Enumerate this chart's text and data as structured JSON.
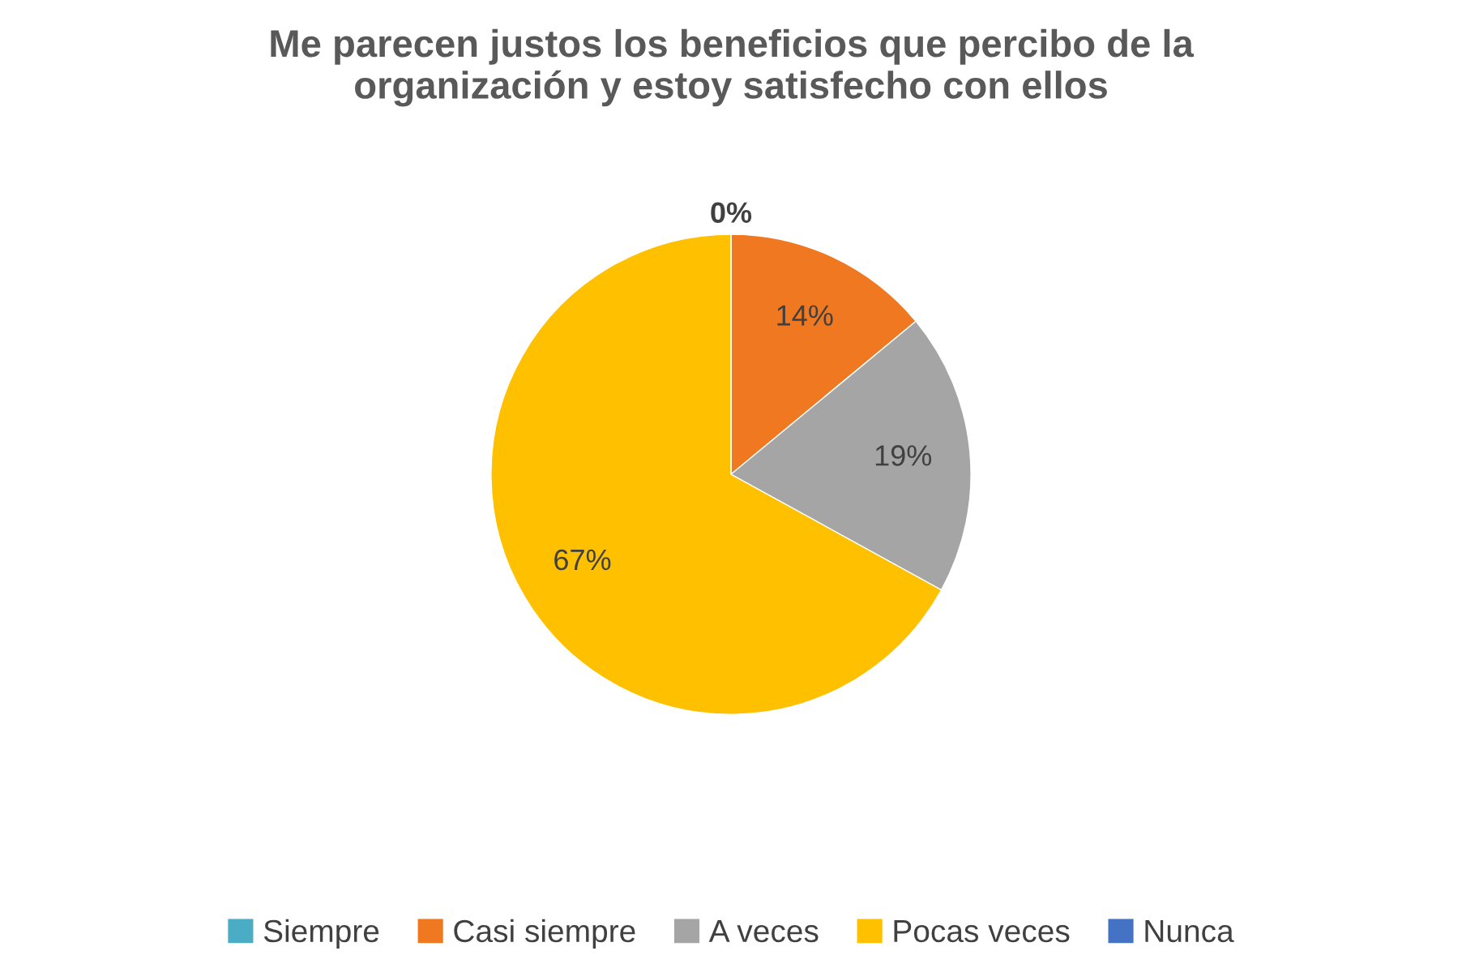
{
  "chart_data": {
    "type": "pie",
    "title": "Me parecen justos los beneficios que percibo de la\norganización y estoy satisfecho con ellos",
    "categories": [
      "Siempre",
      "Casi siempre",
      "A veces",
      "Pocas veces",
      "Nunca"
    ],
    "values": [
      0,
      14,
      19,
      67,
      0
    ],
    "colors": [
      "#4bacc6",
      "#f07820",
      "#a5a5a5",
      "#ffc000",
      "#4472c4"
    ],
    "value_labels": [
      "0%",
      "14%",
      "19%",
      "67%",
      null
    ],
    "legend": "bottom"
  }
}
